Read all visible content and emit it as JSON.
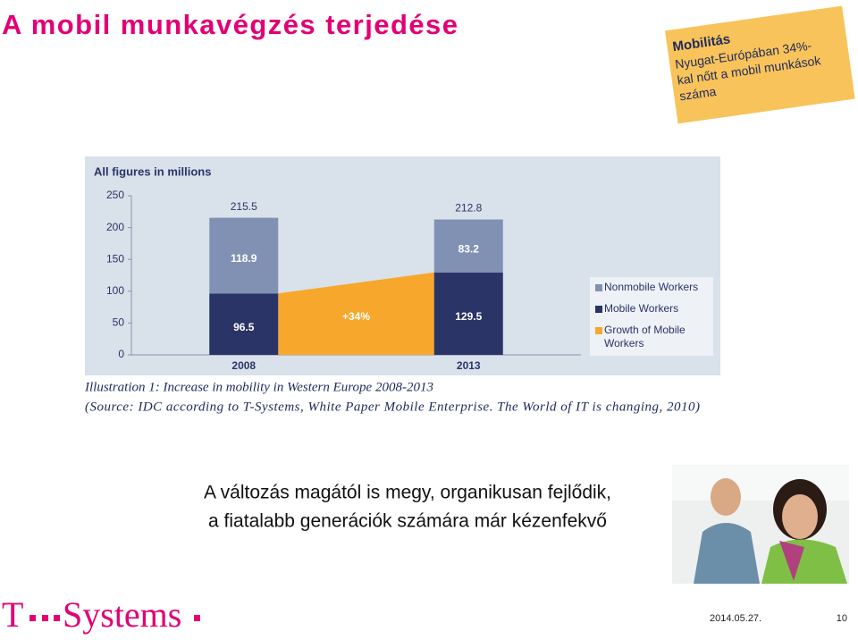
{
  "header": {
    "title": "A mobil munkavégzés terjedése"
  },
  "note": {
    "title": "Mobilitás",
    "lines": [
      "Nyugat-Európában 34%-",
      "kal nőtt a mobil munkások",
      "száma"
    ]
  },
  "chart_data": {
    "type": "stacked-bar",
    "title": "All figures in millions",
    "categories": [
      "2008",
      "2013"
    ],
    "series": [
      {
        "name": "Mobile Workers",
        "color": "#2b3467",
        "values": [
          96.5,
          129.5
        ]
      },
      {
        "name": "Nonmobile Workers",
        "color": "#8191b3",
        "values": [
          118.9,
          83.2
        ]
      }
    ],
    "growth": {
      "name": "Growth of Mobile Workers",
      "color": "#f7a72b",
      "values": [
        96.5,
        129.5
      ],
      "label": "+34%"
    },
    "total_labels": [
      215.5,
      212.8
    ],
    "ylim": [
      0,
      250
    ],
    "yticks": [
      0,
      50,
      100,
      150,
      200,
      250
    ]
  },
  "caption": {
    "lines": [
      "Illustration 1: Increase in mobility in Western Europe 2008-2013",
      "(Source: IDC according to T-Systems, White Paper Mobile Enterprise. The World of IT is changing, 2010)"
    ]
  },
  "body": {
    "lines": [
      "A változás magától is megy, organikusan fejlődik,",
      "a fiatalabb generációk számára már kézenfekvő"
    ]
  },
  "footer": {
    "logo_t": "T",
    "logo_name": "Systems",
    "date": "2014.05.27.",
    "page": "10"
  }
}
